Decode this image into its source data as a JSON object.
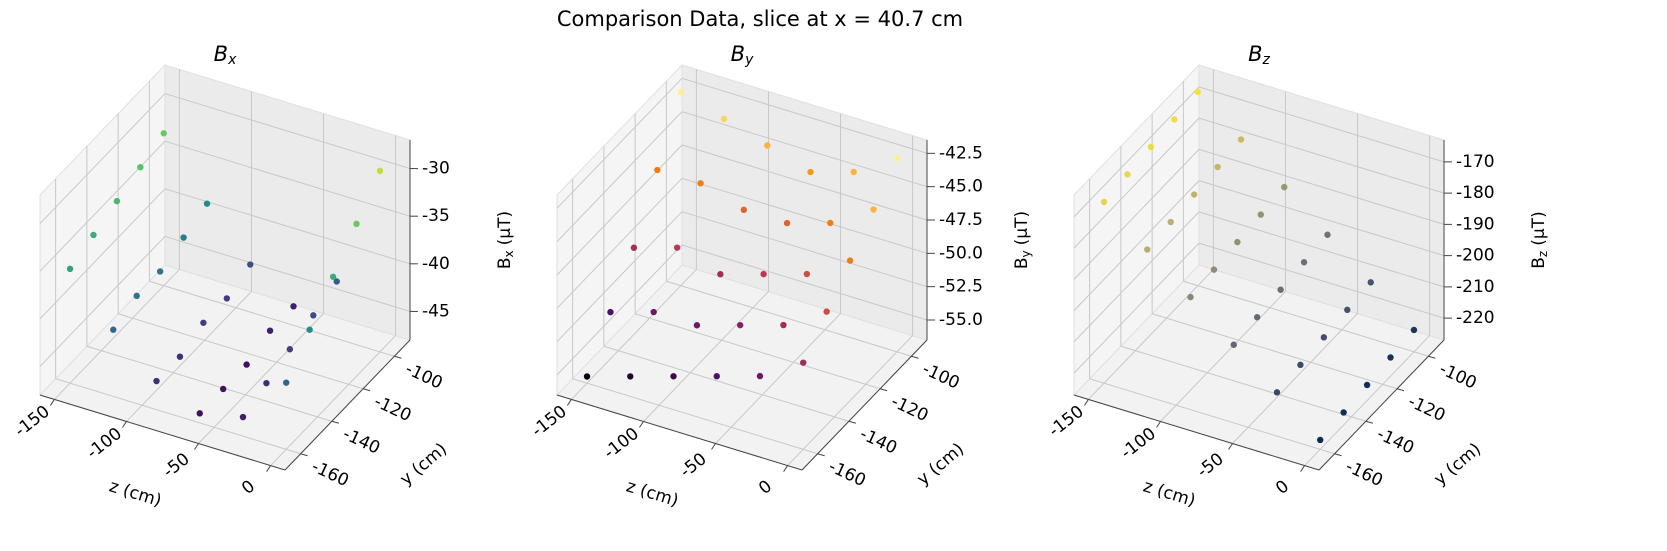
{
  "title": "Comparison Data, slice at x = 40.7 cm",
  "chart_data": [
    {
      "type": "scatter3d",
      "title": {
        "main": "B",
        "sub": "x"
      },
      "colormap": "viridis",
      "xlabel": "z (cm)",
      "ylabel": "y (cm)",
      "zlabel": {
        "main": "B",
        "sub": "x",
        "unit": "(μT)"
      },
      "z": [
        -150,
        -120,
        -90,
        -60,
        -30,
        0
      ],
      "y": [
        -100,
        -115,
        -130,
        -145,
        -160
      ],
      "values": [
        [
          -32,
          -33,
          -34,
          -35,
          -36
        ],
        [
          -38,
          -39,
          -40,
          -40,
          -41
        ],
        [
          -43,
          -44,
          -44,
          -45,
          -45
        ],
        [
          -46,
          -46,
          -47,
          -47,
          -47
        ],
        [
          -42,
          -43,
          -44,
          -45,
          -46
        ],
        [
          -29,
          -32,
          -35,
          -38,
          -41
        ]
      ],
      "xlim": [
        -160,
        10
      ],
      "xticks": [
        -150,
        -100,
        -50,
        0
      ],
      "ylim": [
        -170,
        -90
      ],
      "yticks": [
        -100,
        -120,
        -140,
        -160
      ],
      "vlim": [
        -48,
        -27
      ],
      "vticks": [
        -30,
        -35,
        -40,
        -45
      ],
      "grid": true
    },
    {
      "type": "scatter3d",
      "title": {
        "main": "B",
        "sub": "y"
      },
      "colormap": "inferno",
      "xlabel": "z (cm)",
      "ylabel": "y (cm)",
      "zlabel": {
        "main": "B",
        "sub": "y",
        "unit": "(μT)"
      },
      "z": [
        -150,
        -120,
        -90,
        -60,
        -30,
        0
      ],
      "y": [
        -100,
        -115,
        -130,
        -145,
        -160
      ],
      "values": [
        [
          -42,
          -46,
          -50,
          -53,
          -56
        ],
        [
          -43,
          -46,
          -49,
          -52,
          -55
        ],
        [
          -44,
          -47,
          -50,
          -52,
          -54
        ],
        [
          -45,
          -47,
          -49,
          -51,
          -53
        ],
        [
          -44,
          -46,
          -48,
          -50,
          -52
        ],
        [
          -42,
          -44,
          -46,
          -48,
          -50
        ]
      ],
      "xlim": [
        -160,
        10
      ],
      "xticks": [
        -150,
        -100,
        -50,
        0
      ],
      "ylim": [
        -170,
        -90
      ],
      "yticks": [
        -100,
        -120,
        -140,
        -160
      ],
      "vlim": [
        -56.5,
        -41.5
      ],
      "vticks": [
        -42.5,
        {
          "value": -45,
          "label": "-45.0"
        },
        -47.5,
        {
          "value": -50,
          "label": "-50.0"
        },
        -52.5,
        {
          "value": -55,
          "label": "-55.0"
        }
      ],
      "grid": true
    },
    {
      "type": "scatter3d",
      "title": {
        "main": "B",
        "sub": "z"
      },
      "colormap": "cividis",
      "xlabel": "z (cm)",
      "ylabel": "y (cm)",
      "zlabel": {
        "main": "B",
        "sub": "z",
        "unit": "(μT)"
      },
      "z": [
        -150,
        -120,
        -90,
        -60,
        -30,
        0
      ],
      "y": [
        -100,
        -115,
        -130,
        -145,
        -160
      ],
      "values": [
        [
          -165,
          -166,
          -167,
          -168,
          -169
        ],
        [
          -176,
          -177,
          -178,
          -179,
          -180
        ],
        [
          -187,
          -188,
          -189,
          -190,
          -191
        ],
        [
          -198,
          -199,
          -200,
          -201,
          -202
        ],
        [
          -209,
          -210,
          -211,
          -212,
          -213
        ],
        [
          -220,
          -221,
          -222,
          -223,
          -224
        ]
      ],
      "xlim": [
        -160,
        10
      ],
      "xticks": [
        -150,
        -100,
        -50,
        0
      ],
      "ylim": [
        -170,
        -90
      ],
      "yticks": [
        -100,
        -120,
        -140,
        -160
      ],
      "vlim": [
        -227,
        -163
      ],
      "vticks": [
        -170,
        -180,
        -190,
        -200,
        -210,
        -220
      ],
      "grid": true
    }
  ]
}
